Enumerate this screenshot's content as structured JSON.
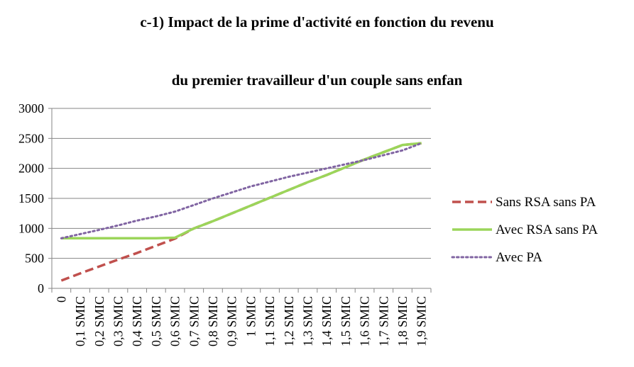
{
  "chart_data": {
    "type": "line",
    "title": "c-1) Impact de la prime d'activité en fonction du revenu",
    "subtitle": "du premier travailleur d'un couple sans enfan",
    "categories": [
      "0",
      "0,1 SMIC",
      "0,2 SMIC",
      "0,3 SMIC",
      "0,4 SMIC",
      "0,5 SMIC",
      "0,6 SMIC",
      "0,7 SMIC",
      "0,8 SMIC",
      "0,9 SMIC",
      "1 SMIC",
      "1,1 SMIC",
      "1,2 SMIC",
      "1,3 SMIC",
      "1,4 SMIC",
      "1,5 SMIC",
      "1,6 SMIC",
      "1,7 SMIC",
      "1,8 SMIC",
      "1,9 SMIC"
    ],
    "yticks": [
      0,
      500,
      1000,
      1500,
      2000,
      2500,
      3000
    ],
    "ylim": [
      0,
      3000
    ],
    "grid": true,
    "legend_position": "right",
    "series": [
      {
        "name": "Sans RSA sans PA",
        "color": "#c0504d",
        "style": "dashed",
        "values": [
          130,
          250,
          365,
          480,
          590,
          710,
          830,
          1000,
          1120,
          1250,
          1380,
          1510,
          1640,
          1770,
          1890,
          2020,
          2150,
          2270,
          2390,
          2420
        ]
      },
      {
        "name": "Avec RSA sans PA",
        "color": "#9bd55a",
        "style": "solid",
        "values": [
          835,
          835,
          835,
          835,
          835,
          835,
          845,
          1000,
          1120,
          1250,
          1380,
          1510,
          1640,
          1770,
          1890,
          2020,
          2150,
          2270,
          2390,
          2420
        ]
      },
      {
        "name": "Avec PA",
        "color": "#8064a2",
        "style": "dotted",
        "values": [
          835,
          905,
          975,
          1050,
          1130,
          1200,
          1280,
          1390,
          1500,
          1600,
          1700,
          1780,
          1860,
          1930,
          2000,
          2070,
          2140,
          2220,
          2300,
          2420
        ]
      }
    ]
  }
}
